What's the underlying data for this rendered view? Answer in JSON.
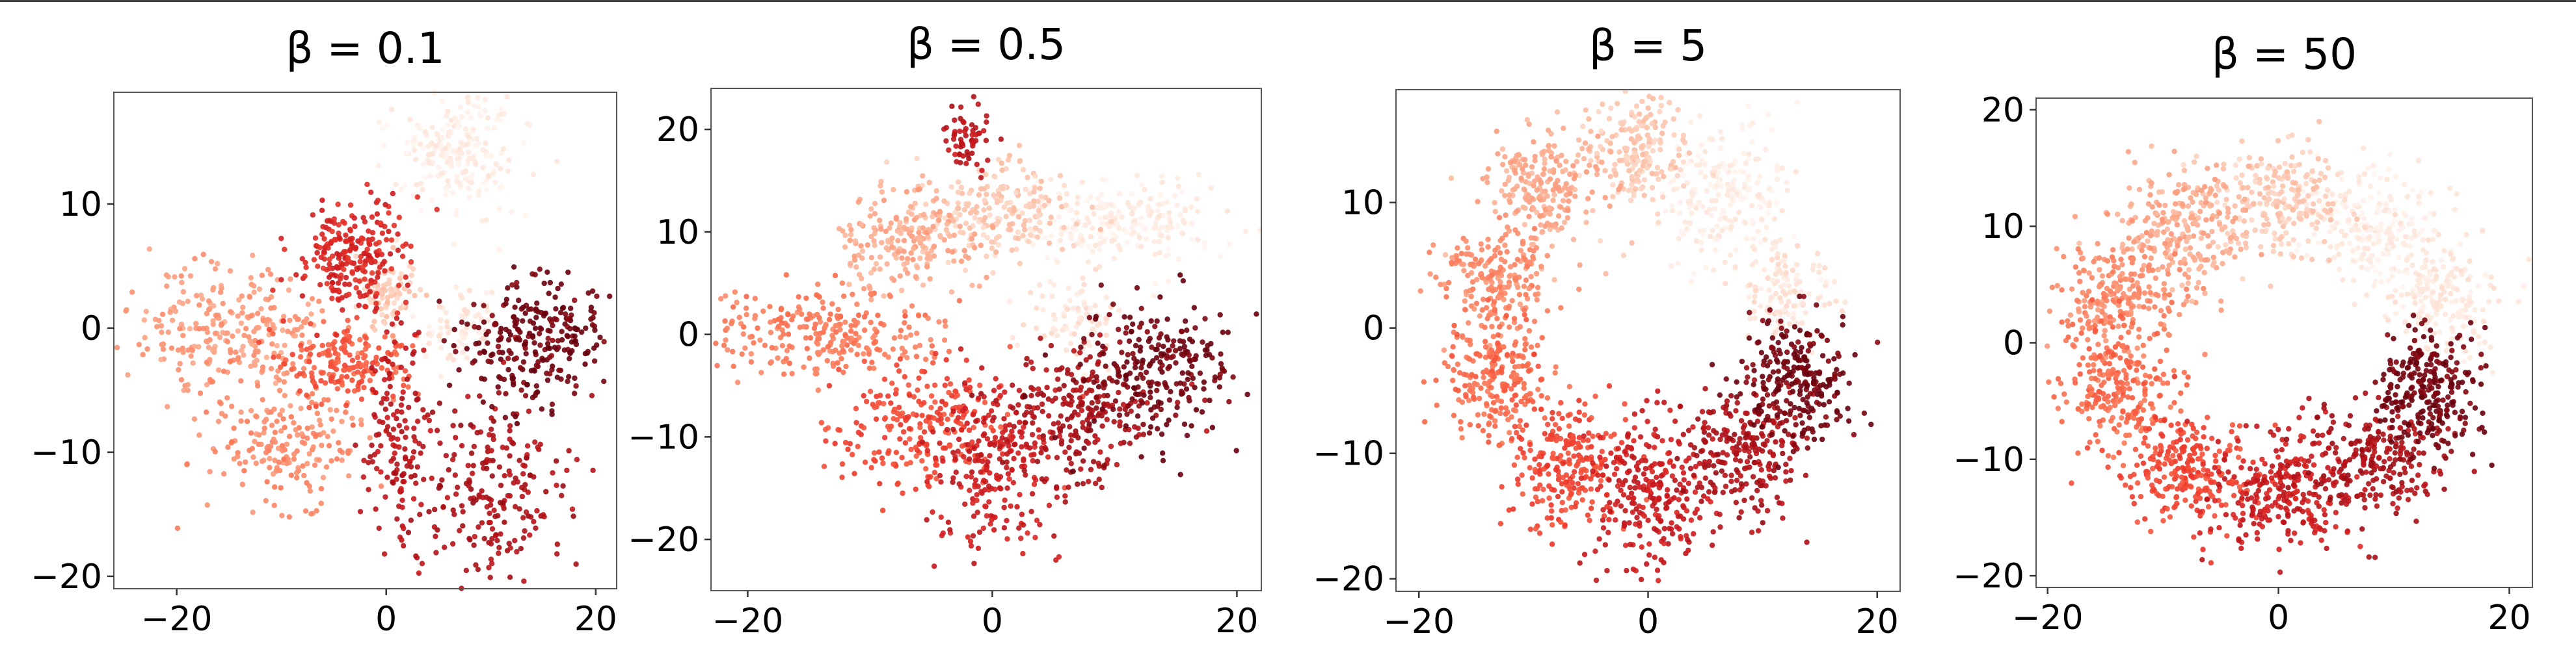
{
  "chart_data": [
    {
      "type": "scatter",
      "title": "β = 0.1",
      "xlim": [
        -26,
        22
      ],
      "ylim": [
        -21,
        19
      ],
      "xticks": [
        -20,
        0,
        20
      ],
      "yticks": [
        -20,
        -10,
        0,
        10
      ],
      "grid": false,
      "legend": "none",
      "colormap": "Reds",
      "clusters": [
        {
          "shade": 0.05,
          "cx": 7,
          "cy": 14,
          "sx": 3,
          "sy": 2.5,
          "n": 220
        },
        {
          "shade": 0.08,
          "cx": 7,
          "cy": 0,
          "sx": 2,
          "sy": 1.5,
          "n": 70
        },
        {
          "shade": 0.2,
          "cx": 0,
          "cy": 3,
          "sx": 1.5,
          "sy": 1.5,
          "n": 90
        },
        {
          "shade": 0.35,
          "cx": -14,
          "cy": 0,
          "sx": 5,
          "sy": 2.5,
          "n": 260
        },
        {
          "shade": 0.4,
          "cx": -10,
          "cy": -9,
          "sx": 4,
          "sy": 3,
          "n": 200
        },
        {
          "shade": 0.55,
          "cx": -4,
          "cy": -3,
          "sx": 3,
          "sy": 1.5,
          "n": 180
        },
        {
          "shade": 0.7,
          "cx": -3,
          "cy": 6,
          "sx": 2.5,
          "sy": 2.5,
          "n": 240
        },
        {
          "shade": 0.8,
          "cx": 1,
          "cy": -9,
          "sx": 1.5,
          "sy": 4,
          "n": 140
        },
        {
          "shade": 0.85,
          "cx": 10,
          "cy": -13,
          "sx": 3.5,
          "sy": 4,
          "n": 220
        },
        {
          "shade": 0.98,
          "cx": 14,
          "cy": -1,
          "sx": 3.5,
          "sy": 2.5,
          "n": 260
        }
      ]
    },
    {
      "type": "scatter",
      "title": "β = 0.5",
      "xlim": [
        -23,
        22
      ],
      "ylim": [
        -25,
        24
      ],
      "xticks": [
        -20,
        0,
        20
      ],
      "yticks": [
        -20,
        -10,
        0,
        10,
        20
      ],
      "grid": false,
      "legend": "none",
      "colormap": "Reds",
      "clusters": [
        {
          "shade": 0.05,
          "cx": 10,
          "cy": 11,
          "sx": 4,
          "sy": 2,
          "n": 230
        },
        {
          "shade": 0.1,
          "cx": 7,
          "cy": 2,
          "sx": 2,
          "sy": 2,
          "n": 80
        },
        {
          "shade": 0.2,
          "cx": 0,
          "cy": 12,
          "sx": 3,
          "sy": 2.5,
          "n": 200
        },
        {
          "shade": 0.3,
          "cx": -7,
          "cy": 9,
          "sx": 3,
          "sy": 2.5,
          "n": 200
        },
        {
          "shade": 0.45,
          "cx": -14,
          "cy": 0,
          "sx": 5,
          "sy": 2,
          "n": 260
        },
        {
          "shade": 0.6,
          "cx": -6,
          "cy": -9,
          "sx": 3.5,
          "sy": 3,
          "n": 240
        },
        {
          "shade": 0.75,
          "cx": 0,
          "cy": -13,
          "sx": 2.5,
          "sy": 4,
          "n": 230
        },
        {
          "shade": 0.8,
          "cx": -2,
          "cy": 19,
          "sx": 1,
          "sy": 1.5,
          "n": 60
        },
        {
          "shade": 0.85,
          "cx": 7,
          "cy": -8,
          "sx": 3,
          "sy": 3.5,
          "n": 230
        },
        {
          "shade": 0.98,
          "cx": 13,
          "cy": -4,
          "sx": 3,
          "sy": 3.5,
          "n": 250
        }
      ]
    },
    {
      "type": "scatter",
      "title": "β = 5",
      "xlim": [
        -22,
        22
      ],
      "ylim": [
        -21,
        19
      ],
      "xticks": [
        -20,
        0,
        20
      ],
      "yticks": [
        -20,
        -10,
        0,
        10
      ],
      "grid": false,
      "legend": "none",
      "colormap": "Reds",
      "clusters": [
        {
          "shade": 0.05,
          "cx": 7,
          "cy": 11,
          "sx": 2.5,
          "sy": 3,
          "n": 220
        },
        {
          "shade": 0.1,
          "cx": 12,
          "cy": 3,
          "sx": 2,
          "sy": 2,
          "n": 120
        },
        {
          "shade": 0.2,
          "cx": -1,
          "cy": 14,
          "sx": 2,
          "sy": 2.5,
          "n": 200
        },
        {
          "shade": 0.3,
          "cx": -9,
          "cy": 11,
          "sx": 2.5,
          "sy": 2.5,
          "n": 220
        },
        {
          "shade": 0.4,
          "cx": -13,
          "cy": 4,
          "sx": 2.5,
          "sy": 2,
          "n": 210
        },
        {
          "shade": 0.5,
          "cx": -13,
          "cy": -4,
          "sx": 2.5,
          "sy": 2.5,
          "n": 220
        },
        {
          "shade": 0.6,
          "cx": -7,
          "cy": -11,
          "sx": 2.5,
          "sy": 2.5,
          "n": 240
        },
        {
          "shade": 0.75,
          "cx": 0,
          "cy": -13,
          "sx": 2.5,
          "sy": 3,
          "n": 250
        },
        {
          "shade": 0.85,
          "cx": 8,
          "cy": -10,
          "sx": 2.5,
          "sy": 2.5,
          "n": 240
        },
        {
          "shade": 0.98,
          "cx": 13,
          "cy": -4,
          "sx": 2.5,
          "sy": 2.5,
          "n": 250
        }
      ]
    },
    {
      "type": "scatter",
      "title": "β = 50",
      "xlim": [
        -21,
        22
      ],
      "ylim": [
        -21,
        21
      ],
      "xticks": [
        -20,
        0,
        20
      ],
      "yticks": [
        -20,
        -10,
        0,
        10,
        20
      ],
      "grid": false,
      "legend": "none",
      "colormap": "Reds",
      "clusters": [
        {
          "shade": 0.05,
          "cx": 8,
          "cy": 10,
          "sx": 3,
          "sy": 2.5,
          "n": 230
        },
        {
          "shade": 0.08,
          "cx": 14,
          "cy": 4,
          "sx": 2.5,
          "sy": 2.5,
          "n": 200
        },
        {
          "shade": 0.2,
          "cx": 0,
          "cy": 12,
          "sx": 3,
          "sy": 2.5,
          "n": 230
        },
        {
          "shade": 0.3,
          "cx": -8,
          "cy": 10,
          "sx": 3,
          "sy": 2.5,
          "n": 240
        },
        {
          "shade": 0.4,
          "cx": -14,
          "cy": 4,
          "sx": 2.5,
          "sy": 2.5,
          "n": 230
        },
        {
          "shade": 0.5,
          "cx": -14,
          "cy": -4,
          "sx": 2.5,
          "sy": 3,
          "n": 240
        },
        {
          "shade": 0.6,
          "cx": -8,
          "cy": -11,
          "sx": 3,
          "sy": 2.5,
          "n": 250
        },
        {
          "shade": 0.75,
          "cx": 0,
          "cy": -13,
          "sx": 3,
          "sy": 2.5,
          "n": 250
        },
        {
          "shade": 0.85,
          "cx": 8,
          "cy": -10,
          "sx": 3,
          "sy": 2.5,
          "n": 240
        },
        {
          "shade": 0.98,
          "cx": 13,
          "cy": -4,
          "sx": 2.5,
          "sy": 2.5,
          "n": 250
        }
      ]
    }
  ]
}
